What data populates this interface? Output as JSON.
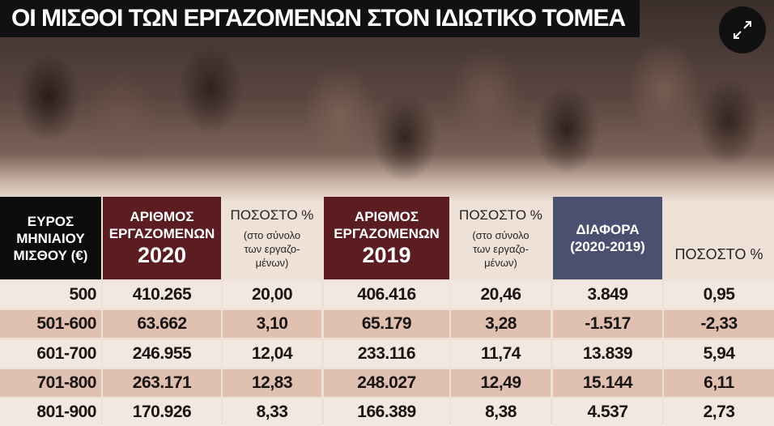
{
  "title": "ΟΙ ΜΙΣΘΟΙ ΤΩΝ ΕΡΓΑΖΟΜΕΝΩΝ ΣΤΟΝ ΙΔΙΩΤΙΚΟ ΤΟΜΕΑ",
  "table": {
    "headers": [
      {
        "lines": [
          "ΕΥΡΟΣ",
          "ΜΗΝΙΑΙΟΥ",
          "ΜΙΣΘΟΥ (€)"
        ]
      },
      {
        "lines": [
          "ΑΡΙΘΜΟΣ",
          "ΕΡΓΑΖΟΜΕΝΩΝ"
        ],
        "year": "2020"
      },
      {
        "lines": [
          "ΠΟΣΟΣΤΟ %"
        ],
        "note": [
          "(στο σύνολο",
          "των εργαζο-",
          "μένων)"
        ]
      },
      {
        "lines": [
          "ΑΡΙΘΜΟΣ",
          "ΕΡΓΑΖΟΜΕΝΩΝ"
        ],
        "year": "2019"
      },
      {
        "lines": [
          "ΠΟΣΟΣΤΟ %"
        ],
        "note": [
          "(στο σύνολο",
          "των εργαζο-",
          "μένων)"
        ]
      },
      {
        "lines": [
          "ΔΙΑΦΟΡΑ",
          "(2020-2019)"
        ]
      },
      {
        "lines": [
          "ΠΟΣΟΣΤΟ %"
        ]
      }
    ],
    "rows": [
      [
        "500",
        "410.265",
        "20,00",
        "406.416",
        "20,46",
        "3.849",
        "0,95"
      ],
      [
        "501-600",
        "63.662",
        "3,10",
        "65.179",
        "3,28",
        "-1.517",
        "-2,33"
      ],
      [
        "601-700",
        "246.955",
        "12,04",
        "233.116",
        "11,74",
        "13.839",
        "5,94"
      ],
      [
        "701-800",
        "263.171",
        "12,83",
        "248.027",
        "12,49",
        "15.144",
        "6,11"
      ],
      [
        "801-900",
        "170.926",
        "8,33",
        "166.389",
        "8,38",
        "4.537",
        "2,73"
      ]
    ]
  }
}
